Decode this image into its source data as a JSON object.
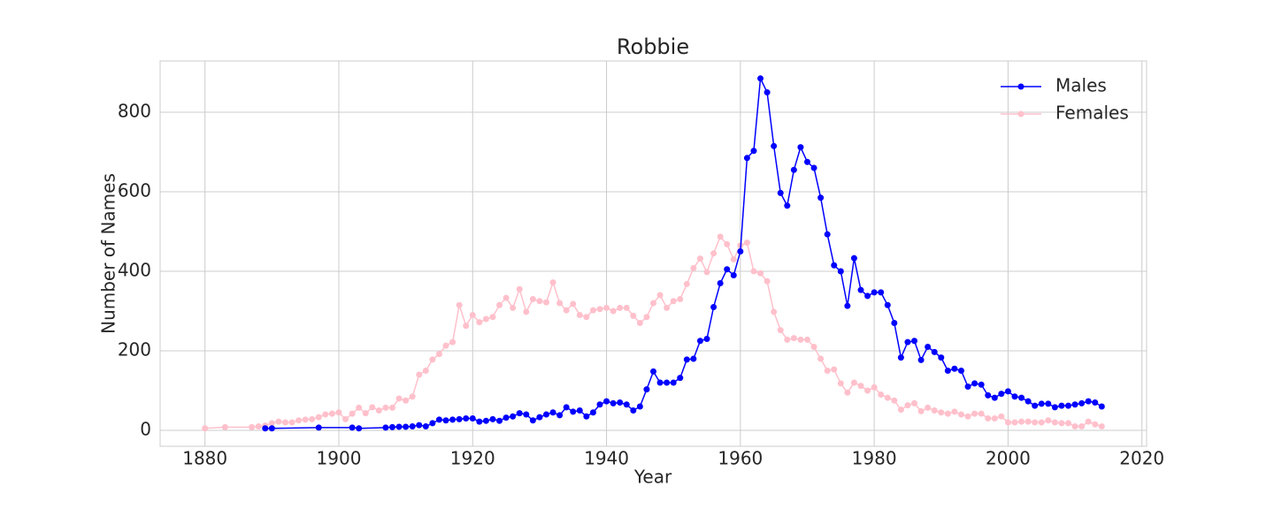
{
  "chart_data": {
    "type": "line",
    "title": "Robbie",
    "x_label": "Year",
    "y_label": "Number of Names",
    "xlim": [
      1873.3,
      2020.7
    ],
    "ylim": [
      -40,
      929
    ],
    "xticks": [
      1880,
      1900,
      1920,
      1940,
      1960,
      1980,
      2000,
      2020
    ],
    "yticks": [
      0,
      200,
      400,
      600,
      800
    ],
    "grid": true,
    "legend": "upper right",
    "series": [
      {
        "name": "Males",
        "color": "#0000ff",
        "x": [
          1889,
          1890,
          1897,
          1902,
          1903,
          1907,
          1908,
          1909,
          1910,
          1911,
          1912,
          1913,
          1914,
          1915,
          1916,
          1917,
          1918,
          1919,
          1920,
          1921,
          1922,
          1923,
          1924,
          1925,
          1926,
          1927,
          1928,
          1929,
          1930,
          1931,
          1932,
          1933,
          1934,
          1935,
          1936,
          1937,
          1938,
          1939,
          1940,
          1941,
          1942,
          1943,
          1944,
          1945,
          1946,
          1947,
          1948,
          1949,
          1950,
          1951,
          1952,
          1953,
          1954,
          1955,
          1956,
          1957,
          1958,
          1959,
          1960,
          1961,
          1962,
          1963,
          1964,
          1965,
          1966,
          1967,
          1968,
          1969,
          1970,
          1971,
          1972,
          1973,
          1974,
          1975,
          1976,
          1977,
          1978,
          1979,
          1980,
          1981,
          1982,
          1983,
          1984,
          1985,
          1986,
          1987,
          1988,
          1989,
          1990,
          1991,
          1992,
          1993,
          1994,
          1995,
          1996,
          1997,
          1998,
          1999,
          2000,
          2001,
          2002,
          2003,
          2004,
          2005,
          2006,
          2007,
          2008,
          2009,
          2010,
          2011,
          2012,
          2013,
          2014
        ],
        "values": [
          5,
          5,
          7,
          7,
          5,
          7,
          8,
          9,
          9,
          10,
          13,
          10,
          18,
          27,
          25,
          27,
          28,
          30,
          30,
          22,
          24,
          28,
          24,
          32,
          35,
          43,
          40,
          25,
          33,
          40,
          45,
          38,
          58,
          47,
          50,
          35,
          45,
          65,
          73,
          68,
          70,
          65,
          50,
          60,
          103,
          148,
          120,
          120,
          120,
          132,
          178,
          180,
          225,
          230,
          310,
          370,
          405,
          390,
          450,
          685,
          703,
          885,
          850,
          715,
          597,
          565,
          655,
          712,
          675,
          660,
          585,
          493,
          415,
          400,
          313,
          433,
          353,
          338,
          347,
          347,
          315,
          270,
          183,
          222,
          225,
          177,
          210,
          197,
          183,
          150,
          155,
          150,
          110,
          118,
          115,
          88,
          82,
          92,
          98,
          85,
          82,
          73,
          62,
          67,
          67,
          58,
          62,
          62,
          65,
          68,
          73,
          70,
          60
        ]
      },
      {
        "name": "Females",
        "color": "#ffc0cb",
        "x": [
          1880,
          1883,
          1887,
          1888,
          1889,
          1890,
          1891,
          1892,
          1893,
          1894,
          1895,
          1896,
          1897,
          1898,
          1899,
          1900,
          1901,
          1902,
          1903,
          1904,
          1905,
          1906,
          1907,
          1908,
          1909,
          1910,
          1911,
          1912,
          1913,
          1914,
          1915,
          1916,
          1917,
          1918,
          1919,
          1920,
          1921,
          1922,
          1923,
          1924,
          1925,
          1926,
          1927,
          1928,
          1929,
          1930,
          1931,
          1932,
          1933,
          1934,
          1935,
          1936,
          1937,
          1938,
          1939,
          1940,
          1941,
          1942,
          1943,
          1944,
          1945,
          1946,
          1947,
          1948,
          1949,
          1950,
          1951,
          1952,
          1953,
          1954,
          1955,
          1956,
          1957,
          1958,
          1959,
          1960,
          1961,
          1962,
          1963,
          1964,
          1965,
          1966,
          1967,
          1968,
          1969,
          1970,
          1971,
          1972,
          1973,
          1974,
          1975,
          1976,
          1977,
          1978,
          1979,
          1980,
          1981,
          1982,
          1983,
          1984,
          1985,
          1986,
          1987,
          1988,
          1989,
          1990,
          1991,
          1992,
          1993,
          1994,
          1995,
          1996,
          1997,
          1998,
          1999,
          2000,
          2001,
          2002,
          2003,
          2004,
          2005,
          2006,
          2007,
          2008,
          2009,
          2010,
          2011,
          2012,
          2013,
          2014
        ],
        "values": [
          5,
          8,
          8,
          10,
          12,
          18,
          22,
          20,
          20,
          25,
          27,
          28,
          33,
          40,
          42,
          45,
          28,
          42,
          57,
          43,
          58,
          50,
          57,
          57,
          80,
          75,
          85,
          140,
          150,
          178,
          192,
          213,
          222,
          315,
          263,
          290,
          272,
          280,
          285,
          315,
          333,
          308,
          355,
          298,
          330,
          325,
          322,
          372,
          320,
          302,
          318,
          290,
          285,
          302,
          305,
          308,
          300,
          308,
          308,
          288,
          270,
          285,
          320,
          340,
          308,
          325,
          330,
          368,
          408,
          432,
          398,
          445,
          487,
          468,
          430,
          465,
          472,
          400,
          395,
          375,
          298,
          252,
          228,
          232,
          228,
          228,
          210,
          180,
          150,
          153,
          118,
          95,
          120,
          112,
          100,
          108,
          90,
          82,
          75,
          52,
          63,
          68,
          48,
          57,
          50,
          45,
          42,
          47,
          40,
          35,
          42,
          42,
          30,
          30,
          35,
          20,
          20,
          22,
          22,
          20,
          20,
          25,
          20,
          18,
          18,
          10,
          10,
          22,
          15,
          10
        ]
      }
    ]
  }
}
